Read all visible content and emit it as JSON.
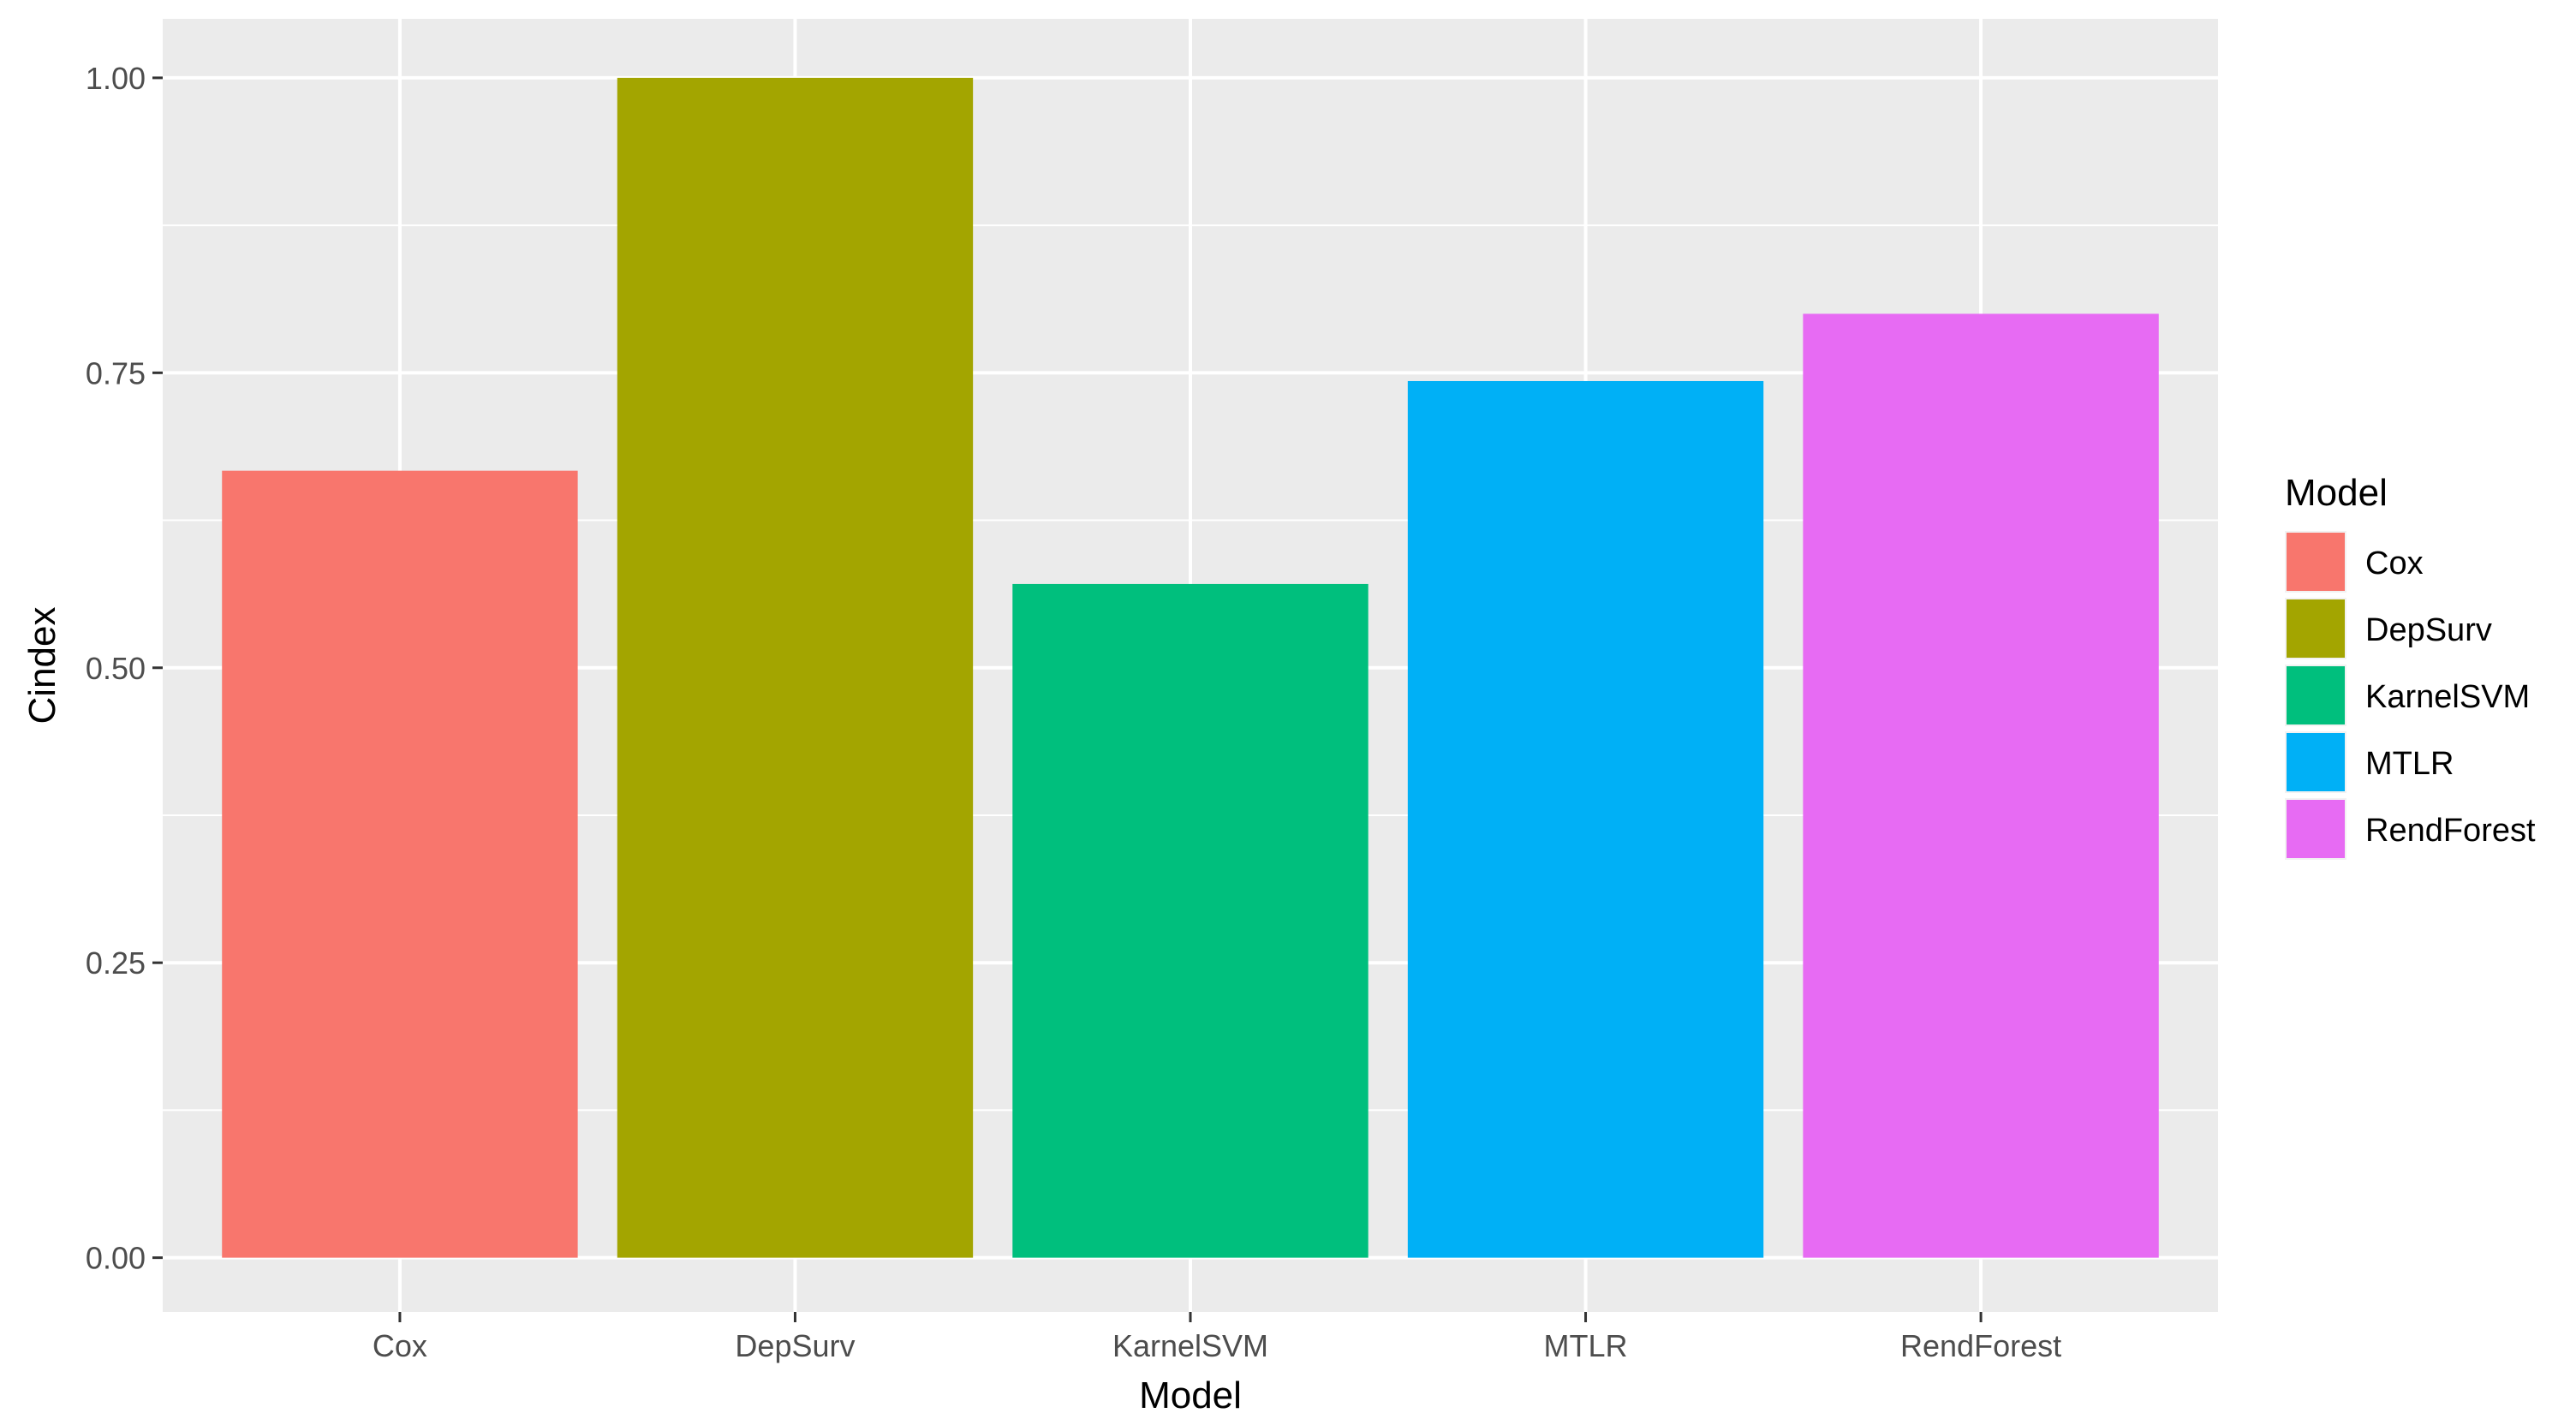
{
  "chart_data": {
    "type": "bar",
    "categories": [
      "Cox",
      "DepSurv",
      "KarnelSVM",
      "MTLR",
      "RendForest"
    ],
    "values": [
      0.667,
      1.0,
      0.571,
      0.743,
      0.8
    ],
    "colors": [
      "#F8766D",
      "#A3A500",
      "#00BF7D",
      "#00B0F6",
      "#E76BF3"
    ],
    "xlabel": "Model",
    "ylabel": "Cindex",
    "ylim": [
      -0.046,
      1.05
    ],
    "yticks": [
      0.0,
      0.25,
      0.5,
      0.75,
      1.0
    ],
    "ytick_labels": [
      "0.00",
      "0.25",
      "0.50",
      "0.75",
      "1.00"
    ],
    "grid": true,
    "panel_background": "#EBEBEB",
    "legend": {
      "title": "Model",
      "position": "right",
      "entries": [
        "Cox",
        "DepSurv",
        "KarnelSVM",
        "MTLR",
        "RendForest"
      ]
    }
  }
}
